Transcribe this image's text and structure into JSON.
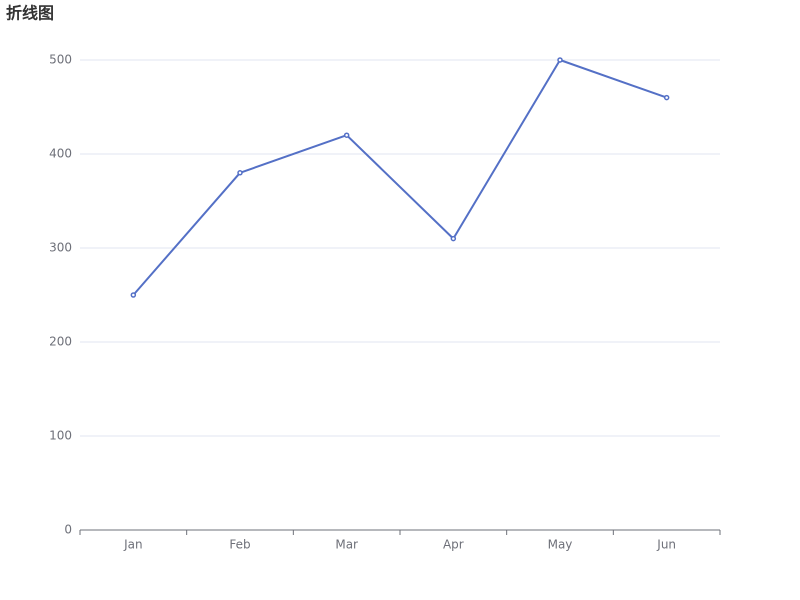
{
  "chart_data": {
    "type": "line",
    "title": "折线图",
    "categories": [
      "Jan",
      "Feb",
      "Mar",
      "Apr",
      "May",
      "Jun"
    ],
    "values": [
      250,
      380,
      420,
      310,
      500,
      460
    ],
    "color": "#5470c6",
    "ylim": [
      0,
      500
    ],
    "yticks": [
      0,
      100,
      200,
      300,
      400,
      500
    ],
    "grid": true
  }
}
